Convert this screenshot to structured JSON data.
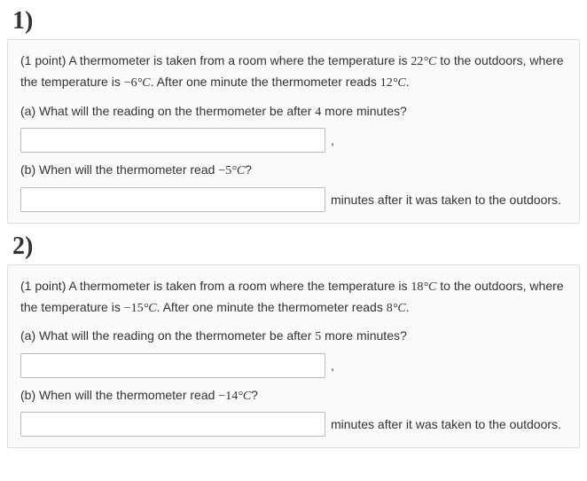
{
  "problems": [
    {
      "label": "1)",
      "points": "(1 point)",
      "intro_pre": " A thermometer is taken from a room where the temperature is ",
      "t_room": "22",
      "intro_mid": " to the outdoors, where the temperature is ",
      "t_out": "−6",
      "intro_post": ". After one minute the thermometer reads ",
      "t_read": "12",
      "a_label": "(a) What will the reading on the thermometer be after ",
      "more_min": "4",
      "a_post": " more minutes?",
      "a_trail": ",",
      "b_pre": "(b) When will the thermometer read ",
      "b_temp": "−5",
      "b_post": "?",
      "b_trail": "minutes after it was taken to the outdoors."
    },
    {
      "label": "2)",
      "points": "(1 point)",
      "intro_pre": " A thermometer is taken from a room where the temperature is ",
      "t_room": "18",
      "intro_mid": " to the outdoors, where the temperature is ",
      "t_out": "−15",
      "intro_post": ". After one minute the thermometer reads ",
      "t_read": "8",
      "a_label": "(a) What will the reading on the thermometer be after ",
      "more_min": "5",
      "a_post": " more minutes?",
      "a_trail": ",",
      "b_pre": "(b) When will the thermometer read ",
      "b_temp": "−14",
      "b_post": "?",
      "b_trail": "minutes after it was taken to the outdoors."
    }
  ],
  "unit_html": "°C",
  "colors": {
    "box_bg": "#fafafa",
    "box_border": "#dddddd",
    "text": "#333333"
  }
}
